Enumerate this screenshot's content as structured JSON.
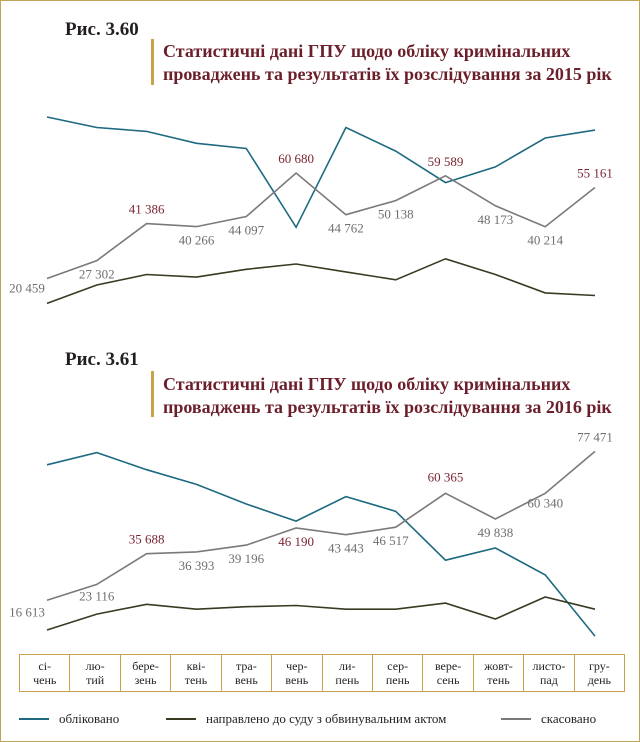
{
  "figures": [
    {
      "label": "Рис. 3.60",
      "title_lines": [
        "Статистичні дані ГПУ щодо обліку кримінальних",
        "проваджень та результатів їх розслідування за 2015 рік"
      ]
    },
    {
      "label": "Рис. 3.61",
      "title_lines": [
        "Статистичні дані ГПУ щодо обліку кримінальних",
        "проваджень та результатів їх розслідування за 2016 рік"
      ]
    }
  ],
  "months": [
    [
      "сі-",
      "чень"
    ],
    [
      "лю-",
      "тий"
    ],
    [
      "бере-",
      "зень"
    ],
    [
      "кві-",
      "тень"
    ],
    [
      "тра-",
      "вень"
    ],
    [
      "чер-",
      "вень"
    ],
    [
      "ли-",
      "пень"
    ],
    [
      "сер-",
      "пень"
    ],
    [
      "вере-",
      "сень"
    ],
    [
      "жовт-",
      "тень"
    ],
    [
      "листо-",
      "пад"
    ],
    [
      "гру-",
      "день"
    ]
  ],
  "legend": {
    "registered": "обліковано",
    "to_court": "направлено до суду з обвинувальним актом",
    "closed": "скасовано"
  },
  "colors": {
    "registered": "#1e6a80",
    "to_court": "#3a3a22",
    "closed": "#7a7a7a",
    "highlight_label": "#7a2532",
    "normal_label": "#6f6f6f",
    "accent_bar": "#c9a24a"
  },
  "chart_data": [
    {
      "type": "line",
      "title": "Статистичні дані ГПУ щодо обліку кримінальних проваджень та результатів їх розслідування за 2015 рік",
      "categories": [
        "січень",
        "лютий",
        "березень",
        "квітень",
        "травень",
        "червень",
        "липень",
        "серпень",
        "вересень",
        "жовтень",
        "листопад",
        "грудень"
      ],
      "ylim": [
        10000,
        90000
      ],
      "series": [
        {
          "key": "registered",
          "name": "обліковано",
          "values": [
            82000,
            78000,
            76500,
            72000,
            70000,
            40000,
            78000,
            69000,
            57000,
            63000,
            74000,
            77000
          ]
        },
        {
          "key": "to_court",
          "name": "направлено до суду з обвинувальним актом",
          "values": [
            11000,
            18000,
            22000,
            21000,
            24000,
            26000,
            23000,
            20000,
            28000,
            22000,
            15000,
            14000
          ]
        },
        {
          "key": "closed",
          "name": "скасовано",
          "values": [
            20459,
            27302,
            41386,
            40266,
            44097,
            60680,
            44762,
            50138,
            59589,
            48173,
            40214,
            55161
          ],
          "labels": [
            "20 459",
            "27 302",
            "41 386",
            "40 266",
            "44 097",
            "60 680",
            "44 762",
            "50 138",
            "59 589",
            "48 173",
            "40 214",
            "55 161"
          ],
          "highlight": [
            false,
            false,
            true,
            false,
            false,
            true,
            false,
            false,
            true,
            false,
            false,
            true
          ]
        }
      ]
    },
    {
      "type": "line",
      "title": "Статистичні дані ГПУ щодо обліку кримінальних проваджень та результатів їх розслідування за 2016 рік",
      "categories": [
        "січень",
        "лютий",
        "березень",
        "квітень",
        "травень",
        "червень",
        "липень",
        "серпень",
        "вересень",
        "жовтень",
        "листопад",
        "грудень"
      ],
      "ylim": [
        0,
        85000
      ],
      "series": [
        {
          "key": "registered",
          "name": "обліковано",
          "values": [
            72000,
            77000,
            70000,
            64000,
            56000,
            49000,
            59000,
            53000,
            33000,
            38000,
            27000,
            2000
          ]
        },
        {
          "key": "to_court",
          "name": "направлено до суду з обвинувальним актом",
          "values": [
            4500,
            11000,
            15000,
            13000,
            14000,
            14500,
            13000,
            13000,
            15500,
            9000,
            18000,
            13000
          ]
        },
        {
          "key": "closed",
          "name": "скасовано",
          "values": [
            16613,
            23116,
            35688,
            36393,
            39196,
            46190,
            43443,
            46517,
            60365,
            49838,
            60340,
            77471
          ],
          "labels": [
            "16 613",
            "23 116",
            "35 688",
            "36 393",
            "39 196",
            "46 190",
            "43 443",
            "46 517",
            "60 365",
            "49 838",
            "60 340",
            "77 471"
          ],
          "highlight": [
            false,
            false,
            true,
            false,
            false,
            true,
            false,
            false,
            true,
            false,
            false,
            false
          ]
        }
      ]
    }
  ]
}
